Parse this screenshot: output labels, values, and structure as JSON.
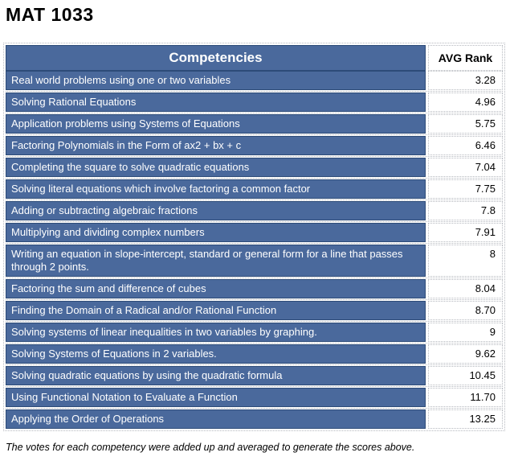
{
  "title": "MAT 1033",
  "table": {
    "header": {
      "competencies": "Competencies",
      "avg_rank": "AVG Rank"
    },
    "rows": [
      {
        "competency": "Real world problems using one or two variables",
        "avg_rank": "3.28"
      },
      {
        "competency": "Solving Rational Equations",
        "avg_rank": "4.96"
      },
      {
        "competency": "Application problems using Systems of Equations",
        "avg_rank": "5.75"
      },
      {
        "competency": "Factoring Polynomials in the Form of ax2 + bx + c",
        "avg_rank": "6.46"
      },
      {
        "competency": "Completing the square to solve quadratic equations",
        "avg_rank": "7.04"
      },
      {
        "competency": "Solving literal equations which involve factoring a common factor",
        "avg_rank": "7.75"
      },
      {
        "competency": "Adding or subtracting algebraic fractions",
        "avg_rank": "7.8"
      },
      {
        "competency": "Multiplying and dividing complex numbers",
        "avg_rank": "7.91"
      },
      {
        "competency": "Writing an equation in slope-intercept, standard or general form for a line that passes through 2 points.",
        "avg_rank": "8"
      },
      {
        "competency": "Factoring the sum and difference of cubes",
        "avg_rank": "8.04"
      },
      {
        "competency": "Finding the Domain of a Radical and/or Rational Function",
        "avg_rank": "8.70"
      },
      {
        "competency": "Solving systems of linear inequalities in two variables by graphing.",
        "avg_rank": "9"
      },
      {
        "competency": "Solving Systems of Equations in 2 variables.",
        "avg_rank": "9.62"
      },
      {
        "competency": "Solving quadratic equations by using the quadratic formula",
        "avg_rank": "10.45"
      },
      {
        "competency": "Using Functional Notation to Evaluate a Function",
        "avg_rank": "11.70"
      },
      {
        "competency": "Applying the Order of Operations",
        "avg_rank": "13.25"
      }
    ]
  },
  "footer_note": "The votes for each competency were added up and averaged to generate the scores above.",
  "colors": {
    "row_blue": "#4a699c",
    "row_blue_border": "#2d4b78",
    "grid_dotted": "#b7bac0",
    "header_text": "#ffffff",
    "rank_text": "#000000"
  }
}
